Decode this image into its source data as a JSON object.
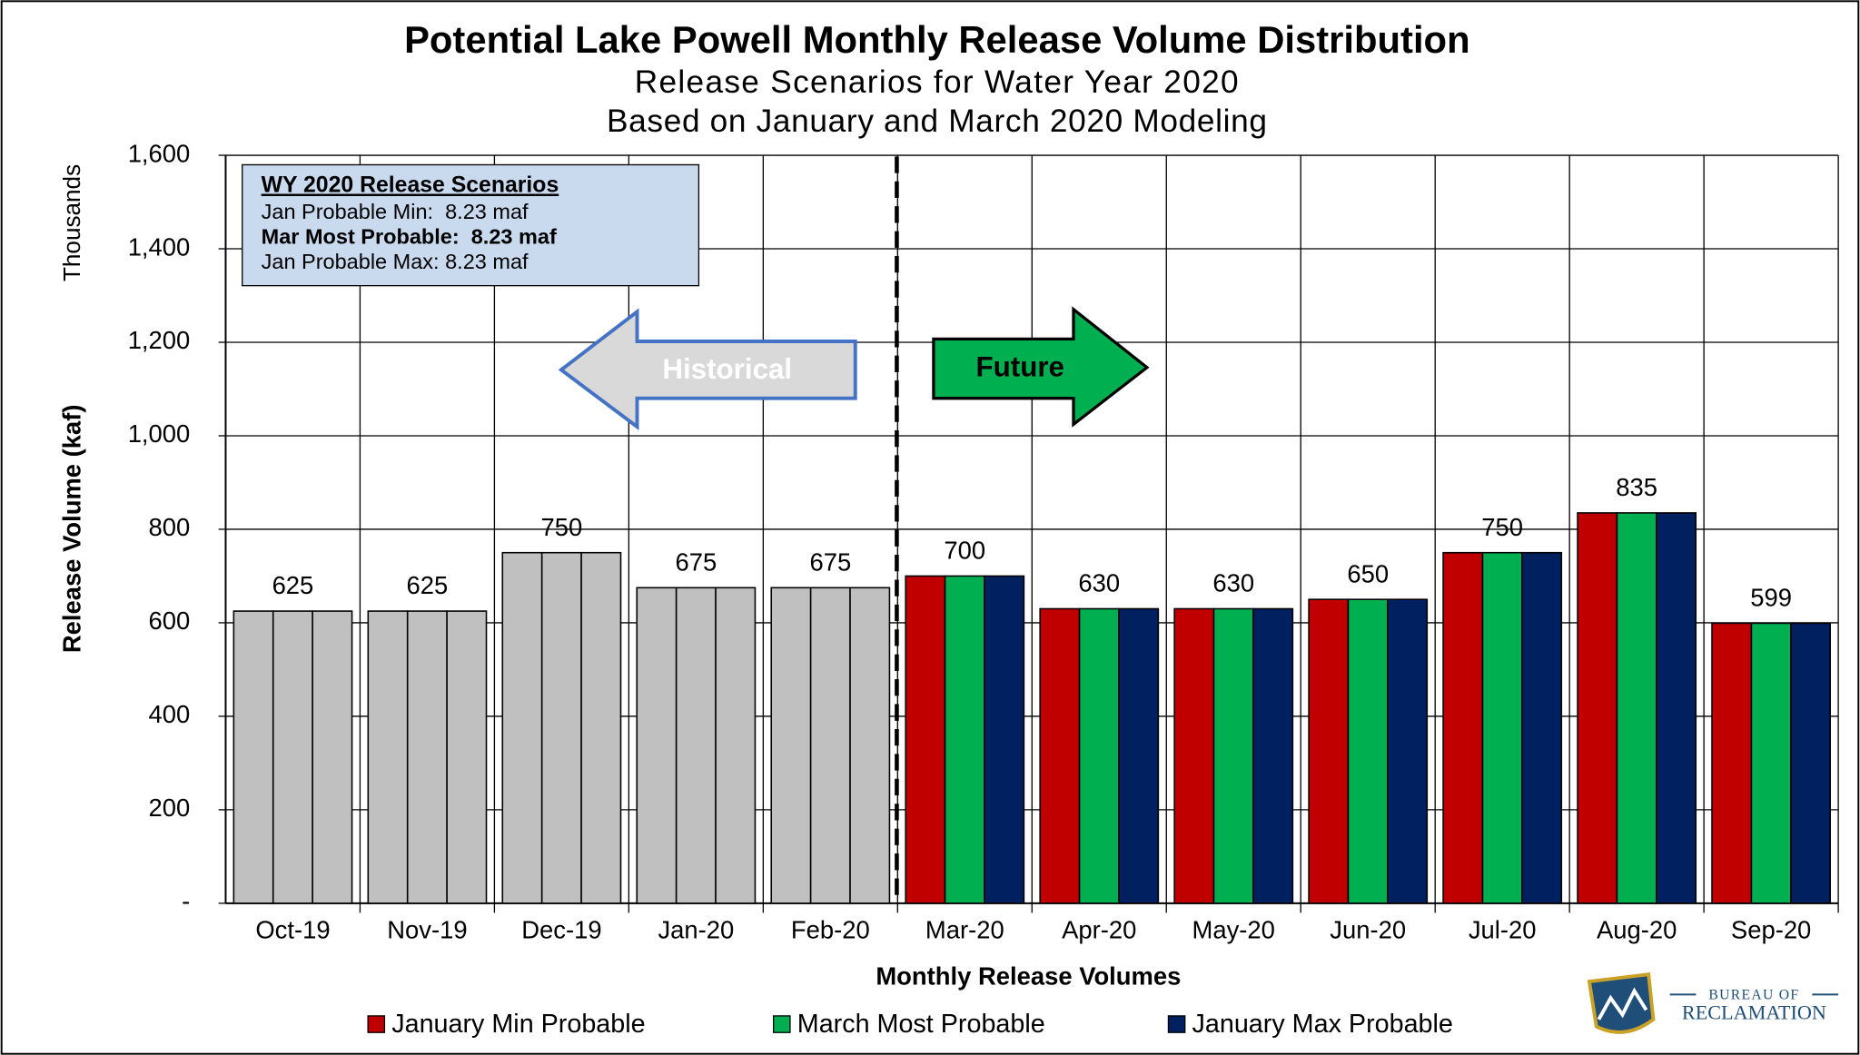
{
  "chart_data": {
    "type": "bar",
    "title": "Potential Lake Powell Monthly Release Volume Distribution",
    "subtitle": [
      "Release Scenarios for Water Year 2020",
      "Based on January and March 2020 Modeling"
    ],
    "y_axis_label": "Release Volume (kaf)",
    "y_axis_unit_label": "Thousands",
    "x_axis_label": "Monthly Release Volumes",
    "categories": [
      "Oct-19",
      "Nov-19",
      "Dec-19",
      "Jan-20",
      "Feb-20",
      "Mar-20",
      "Apr-20",
      "May-20",
      "Jun-20",
      "Jul-20",
      "Aug-20",
      "Sep-20"
    ],
    "series": [
      {
        "name": "January Min Probable",
        "color": "#c00000",
        "colors": [
          "#c0c0c0",
          "#c0c0c0",
          "#c0c0c0",
          "#c0c0c0",
          "#c0c0c0",
          "#c00000",
          "#c00000",
          "#c00000",
          "#c00000",
          "#c00000",
          "#c00000",
          "#c00000"
        ],
        "values": [
          625,
          625,
          750,
          675,
          675,
          700,
          630,
          630,
          650,
          750,
          835,
          599
        ]
      },
      {
        "name": "March Most Probable",
        "color": "#00b050",
        "colors": [
          "#c0c0c0",
          "#c0c0c0",
          "#c0c0c0",
          "#c0c0c0",
          "#c0c0c0",
          "#00b050",
          "#00b050",
          "#00b050",
          "#00b050",
          "#00b050",
          "#00b050",
          "#00b050"
        ],
        "values": [
          625,
          625,
          750,
          675,
          675,
          700,
          630,
          630,
          650,
          750,
          835,
          599
        ]
      },
      {
        "name": "January Max Probable",
        "color": "#002060",
        "colors": [
          "#c0c0c0",
          "#c0c0c0",
          "#c0c0c0",
          "#c0c0c0",
          "#c0c0c0",
          "#002060",
          "#002060",
          "#002060",
          "#002060",
          "#002060",
          "#002060",
          "#002060"
        ],
        "values": [
          625,
          625,
          750,
          675,
          675,
          700,
          630,
          630,
          650,
          750,
          835,
          599
        ]
      }
    ],
    "ylim": [
      0,
      1600
    ],
    "yticks": [
      {
        "value": 0,
        "label": "-"
      },
      200,
      400,
      600,
      800,
      {
        "value": 1000,
        "label": "1,000"
      },
      {
        "value": 1200,
        "label": "1,200"
      },
      {
        "value": 1400,
        "label": "1,400"
      },
      {
        "value": 1600,
        "label": "1,600"
      }
    ],
    "grid": true,
    "legend": "bottom",
    "annotations": {
      "scenario_box": {
        "title": "WY 2020 Release Scenarios",
        "lines": [
          "Jan Probable Min:  8.23 maf",
          "Mar Most Probable:  8.23 maf",
          "Jan Probable Max: 8.23 maf"
        ]
      },
      "historical_arrow": "Historical",
      "future_arrow": "Future"
    },
    "logo": {
      "top": "BUREAU OF",
      "bottom": "RECLAMATION"
    }
  }
}
